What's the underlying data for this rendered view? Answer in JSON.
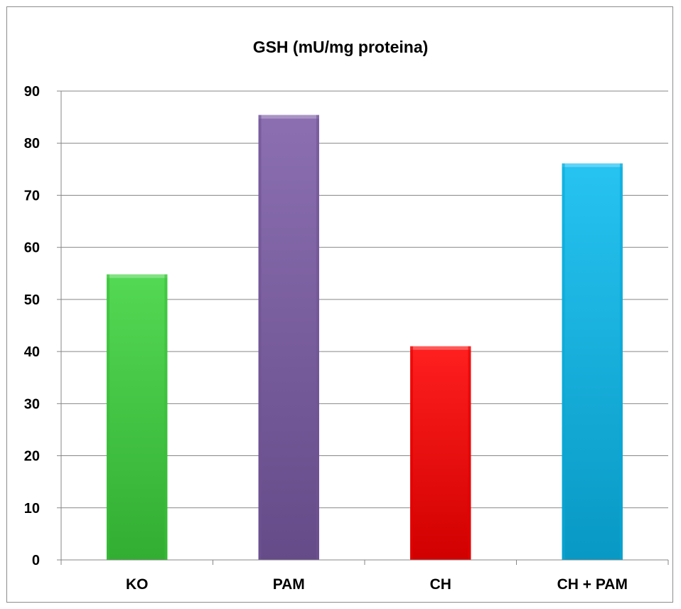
{
  "chart_data": {
    "type": "bar",
    "title": "GSH (mU/mg proteina)",
    "xlabel": "",
    "ylabel": "",
    "categories": [
      "KO",
      "PAM",
      "CH",
      "CH + PAM"
    ],
    "values": [
      54.8,
      85.4,
      41,
      76.1
    ],
    "ylim": [
      0,
      90
    ],
    "yticks": [
      0,
      10,
      20,
      30,
      40,
      50,
      60,
      70,
      80,
      90
    ],
    "grid": true,
    "legend": "none",
    "colors": [
      "#3dd43d",
      "#7b5ba6",
      "#ff0000",
      "#0abbef"
    ]
  }
}
